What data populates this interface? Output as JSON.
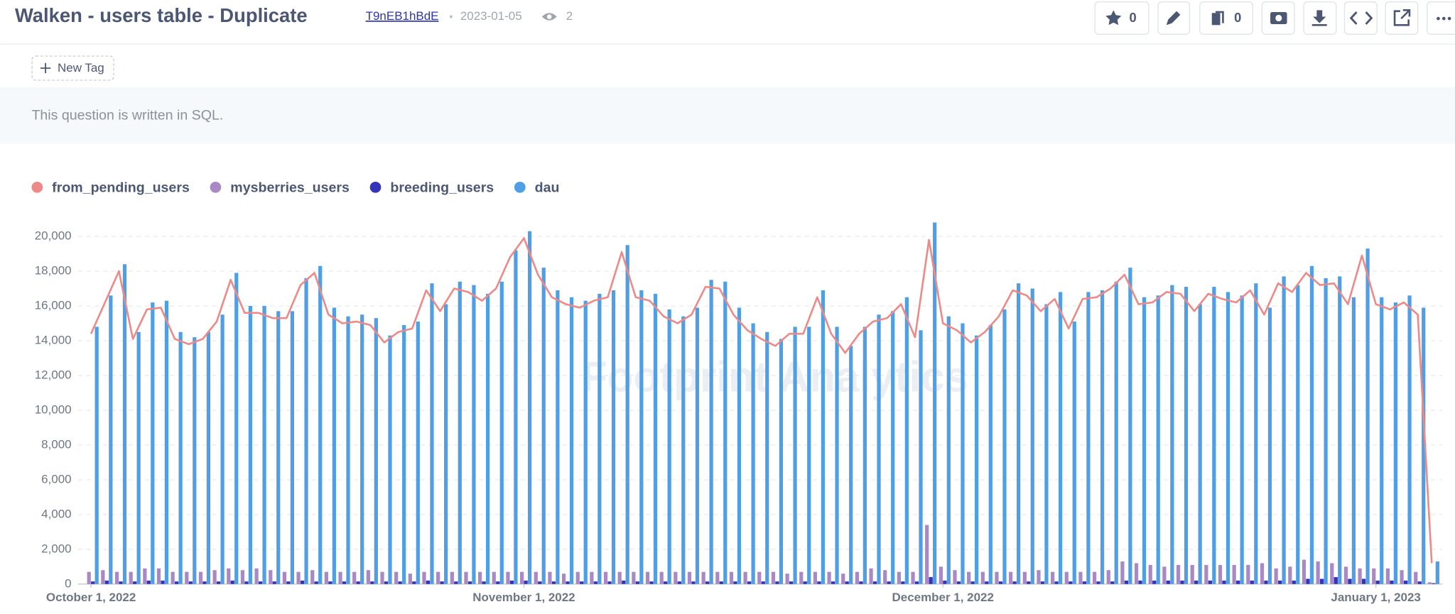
{
  "header": {
    "title": "Walken - users table - Duplicate",
    "question_id": "T9nEB1hBdE",
    "date": "2023-01-05",
    "views": 2,
    "favorites": 0,
    "collections": 0
  },
  "tag_button": "New Tag",
  "description": "This question is written in SQL.",
  "chart_data": {
    "type": "bar",
    "watermark": "Footprint Analytics",
    "x": [
      "2022-10-01",
      "2022-10-02",
      "2022-10-03",
      "2022-10-04",
      "2022-10-05",
      "2022-10-06",
      "2022-10-07",
      "2022-10-08",
      "2022-10-09",
      "2022-10-10",
      "2022-10-11",
      "2022-10-12",
      "2022-10-13",
      "2022-10-14",
      "2022-10-15",
      "2022-10-16",
      "2022-10-17",
      "2022-10-18",
      "2022-10-19",
      "2022-10-20",
      "2022-10-21",
      "2022-10-22",
      "2022-10-23",
      "2022-10-24",
      "2022-10-25",
      "2022-10-26",
      "2022-10-27",
      "2022-10-28",
      "2022-10-29",
      "2022-10-30",
      "2022-10-31",
      "2022-11-01",
      "2022-11-02",
      "2022-11-03",
      "2022-11-04",
      "2022-11-05",
      "2022-11-06",
      "2022-11-07",
      "2022-11-08",
      "2022-11-09",
      "2022-11-10",
      "2022-11-11",
      "2022-11-12",
      "2022-11-13",
      "2022-11-14",
      "2022-11-15",
      "2022-11-16",
      "2022-11-17",
      "2022-11-18",
      "2022-11-19",
      "2022-11-20",
      "2022-11-21",
      "2022-11-22",
      "2022-11-23",
      "2022-11-24",
      "2022-11-25",
      "2022-11-26",
      "2022-11-27",
      "2022-11-28",
      "2022-11-29",
      "2022-11-30",
      "2022-12-01",
      "2022-12-02",
      "2022-12-03",
      "2022-12-04",
      "2022-12-05",
      "2022-12-06",
      "2022-12-07",
      "2022-12-08",
      "2022-12-09",
      "2022-12-10",
      "2022-12-11",
      "2022-12-12",
      "2022-12-13",
      "2022-12-14",
      "2022-12-15",
      "2022-12-16",
      "2022-12-17",
      "2022-12-18",
      "2022-12-19",
      "2022-12-20",
      "2022-12-21",
      "2022-12-22",
      "2022-12-23",
      "2022-12-24",
      "2022-12-25",
      "2022-12-26",
      "2022-12-27",
      "2022-12-28",
      "2022-12-29",
      "2022-12-30",
      "2022-12-31",
      "2023-01-01",
      "2023-01-02",
      "2023-01-03",
      "2023-01-04",
      "2023-01-05"
    ],
    "xticks": [
      {
        "value": "2022-10-01",
        "label": "October 1, 2022"
      },
      {
        "value": "2022-11-01",
        "label": "November 1, 2022"
      },
      {
        "value": "2022-12-01",
        "label": "December 1, 2022"
      },
      {
        "value": "2023-01-01",
        "label": "January 1, 2023"
      }
    ],
    "ylim": [
      0,
      21000
    ],
    "yticks": [
      0,
      {
        "value": 2000,
        "label": "2,000"
      },
      {
        "value": 4000,
        "label": "4,000"
      },
      {
        "value": 6000,
        "label": "6,000"
      },
      {
        "value": 8000,
        "label": "8,000"
      },
      {
        "value": 10000,
        "label": "10,000"
      },
      {
        "value": 12000,
        "label": "12,000"
      },
      {
        "value": 14000,
        "label": "14,000"
      },
      {
        "value": 16000,
        "label": "16,000"
      },
      {
        "value": 18000,
        "label": "18,000"
      },
      {
        "value": 20000,
        "label": "20,000"
      }
    ],
    "grid": true,
    "series": [
      {
        "name": "from_pending_users",
        "color": "#ed8a88",
        "type": "line",
        "values": [
          14400,
          16200,
          18000,
          14100,
          15800,
          15900,
          14100,
          13800,
          14100,
          15100,
          17500,
          15600,
          15600,
          15300,
          15300,
          17200,
          17900,
          15500,
          15000,
          15100,
          14900,
          13900,
          14500,
          14700,
          16900,
          15700,
          17000,
          16800,
          16300,
          17000,
          18800,
          19900,
          17800,
          16500,
          16100,
          15900,
          16300,
          16500,
          19100,
          16500,
          16300,
          15400,
          15000,
          15500,
          17100,
          17000,
          15500,
          14600,
          14100,
          13700,
          14400,
          14400,
          16500,
          14400,
          13300,
          14400,
          15100,
          15300,
          16100,
          14200,
          19800,
          15000,
          14600,
          13900,
          14500,
          15400,
          16900,
          16600,
          15700,
          16400,
          14700,
          16400,
          16500,
          17000,
          17800,
          16100,
          16200,
          16800,
          16700,
          15700,
          16700,
          16400,
          16200,
          16900,
          15500,
          17300,
          16800,
          17900,
          17200,
          17300,
          16100,
          18900,
          16100,
          15800,
          16200,
          15500,
          1200
        ]
      },
      {
        "name": "mysberries_users",
        "color": "#a989c5",
        "type": "bar",
        "values": [
          700,
          800,
          700,
          700,
          900,
          900,
          700,
          700,
          700,
          800,
          900,
          800,
          900,
          800,
          700,
          700,
          800,
          700,
          700,
          700,
          800,
          700,
          700,
          600,
          700,
          700,
          700,
          700,
          700,
          700,
          700,
          700,
          700,
          700,
          600,
          700,
          700,
          700,
          700,
          700,
          700,
          700,
          700,
          700,
          700,
          700,
          700,
          700,
          700,
          700,
          600,
          700,
          700,
          700,
          600,
          700,
          900,
          800,
          700,
          700,
          3400,
          1000,
          800,
          700,
          700,
          700,
          700,
          700,
          800,
          700,
          700,
          700,
          700,
          800,
          1300,
          1200,
          1100,
          1000,
          1100,
          1100,
          1100,
          1100,
          1100,
          1100,
          1200,
          900,
          1000,
          1400,
          1300,
          1200,
          1000,
          900,
          900,
          900,
          800,
          700,
          100
        ]
      },
      {
        "name": "breeding_users",
        "color": "#3434b8",
        "type": "bar",
        "values": [
          150,
          200,
          150,
          150,
          200,
          200,
          150,
          150,
          150,
          150,
          200,
          150,
          150,
          150,
          150,
          200,
          150,
          150,
          150,
          150,
          150,
          150,
          150,
          150,
          200,
          150,
          150,
          150,
          150,
          150,
          200,
          200,
          150,
          150,
          150,
          150,
          150,
          150,
          200,
          150,
          150,
          150,
          150,
          150,
          150,
          150,
          150,
          150,
          150,
          150,
          150,
          150,
          150,
          150,
          150,
          150,
          150,
          150,
          150,
          150,
          400,
          200,
          150,
          150,
          150,
          150,
          150,
          150,
          150,
          150,
          150,
          150,
          150,
          150,
          200,
          200,
          200,
          200,
          200,
          200,
          200,
          200,
          200,
          200,
          200,
          200,
          200,
          300,
          300,
          400,
          300,
          300,
          200,
          200,
          200,
          150,
          50
        ]
      },
      {
        "name": "dau",
        "color": "#509ee3",
        "type": "bar",
        "values": [
          14800,
          16600,
          18400,
          14500,
          16200,
          16300,
          14500,
          14200,
          14500,
          15500,
          17900,
          16000,
          16000,
          15700,
          15700,
          17600,
          18300,
          15900,
          15400,
          15500,
          15300,
          14300,
          14900,
          15100,
          17300,
          16100,
          17400,
          17200,
          16700,
          17400,
          19200,
          20300,
          18200,
          16900,
          16500,
          16300,
          16700,
          16900,
          19500,
          16900,
          16700,
          15800,
          15400,
          15900,
          17500,
          17400,
          15900,
          15000,
          14500,
          14100,
          14800,
          14800,
          16900,
          14800,
          13700,
          14800,
          15500,
          15700,
          16500,
          14600,
          20800,
          15400,
          15000,
          14300,
          14900,
          15800,
          17300,
          17000,
          16100,
          16800,
          15100,
          16800,
          16900,
          17400,
          18200,
          16500,
          16600,
          17200,
          17100,
          16100,
          17100,
          16800,
          16600,
          17300,
          15900,
          17700,
          17200,
          18300,
          17600,
          17700,
          16500,
          19300,
          16500,
          16200,
          16600,
          15900,
          1300
        ]
      }
    ]
  }
}
